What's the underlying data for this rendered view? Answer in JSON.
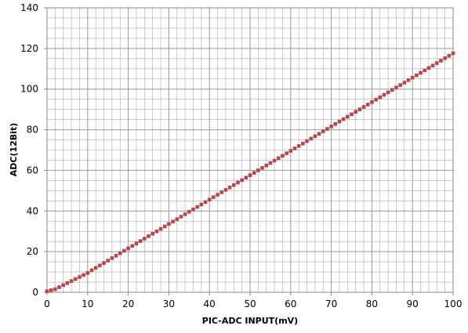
{
  "chart_data": {
    "type": "scatter",
    "title": "",
    "xlabel": "PIC-ADC INPUT(mV)",
    "ylabel": "ADC(12Bit)",
    "xlim": [
      0,
      100
    ],
    "ylim": [
      0,
      140
    ],
    "x_ticks": [
      0,
      10,
      20,
      30,
      40,
      50,
      60,
      70,
      80,
      90,
      100
    ],
    "y_ticks": [
      0,
      20,
      40,
      60,
      80,
      100,
      120,
      140
    ],
    "x_ticks_text": [
      "0",
      "10",
      "20",
      "30",
      "40",
      "50",
      "60",
      "70",
      "80",
      "90",
      "100"
    ],
    "y_ticks_text": [
      "0",
      "20",
      "40",
      "60",
      "80",
      "100",
      "120",
      "140"
    ],
    "x_minor_step": 2,
    "y_minor_step": 5,
    "grid": true,
    "legend": "none",
    "colors": {
      "marker": "#b5474a",
      "grid": "#aaaaaa",
      "axis": "#888888"
    },
    "series": [
      {
        "x": [
          0,
          1,
          2,
          3,
          4,
          5,
          6,
          7,
          8,
          9,
          10,
          11,
          12,
          13,
          14,
          15,
          16,
          17,
          18,
          19,
          20,
          21,
          22,
          23,
          24,
          25,
          26,
          27,
          28,
          29,
          30,
          31,
          32,
          33,
          34,
          35,
          36,
          37,
          38,
          39,
          40,
          41,
          42,
          43,
          44,
          45,
          46,
          47,
          48,
          49,
          50,
          51,
          52,
          53,
          54,
          55,
          56,
          57,
          58,
          59,
          60,
          61,
          62,
          63,
          64,
          65,
          66,
          67,
          68,
          69,
          70,
          71,
          72,
          73,
          74,
          75,
          76,
          77,
          78,
          79,
          80,
          81,
          82,
          83,
          84,
          85,
          86,
          87,
          88,
          89,
          90,
          91,
          92,
          93,
          94,
          95,
          96,
          97,
          98,
          99,
          100
        ],
        "y": [
          0.5,
          1.0,
          1.5,
          2.5,
          3.5,
          4.5,
          5.5,
          6.5,
          7.5,
          8.5,
          9.5,
          10.8,
          12.0,
          13.2,
          14.4,
          15.6,
          16.8,
          18.0,
          19.2,
          20.4,
          21.6,
          22.8,
          24.0,
          25.2,
          26.4,
          27.6,
          28.8,
          30.0,
          31.2,
          32.4,
          33.6,
          34.8,
          36.0,
          37.2,
          38.4,
          39.6,
          40.8,
          42.0,
          43.2,
          44.4,
          45.6,
          46.8,
          48.0,
          49.2,
          50.4,
          51.6,
          52.8,
          54.0,
          55.2,
          56.4,
          57.6,
          58.8,
          60.0,
          61.2,
          62.4,
          63.6,
          64.8,
          66.0,
          67.2,
          68.4,
          69.6,
          70.8,
          72.0,
          73.2,
          74.4,
          75.6,
          76.8,
          78.0,
          79.2,
          80.4,
          81.6,
          82.8,
          84.0,
          85.2,
          86.4,
          87.6,
          88.8,
          90.0,
          91.2,
          92.4,
          93.6,
          94.8,
          96.0,
          97.2,
          98.4,
          99.6,
          100.8,
          102.0,
          103.2,
          104.4,
          105.6,
          106.8,
          108.0,
          109.2,
          110.4,
          111.6,
          112.8,
          114.0,
          115.2,
          116.4,
          117.6
        ]
      }
    ]
  }
}
